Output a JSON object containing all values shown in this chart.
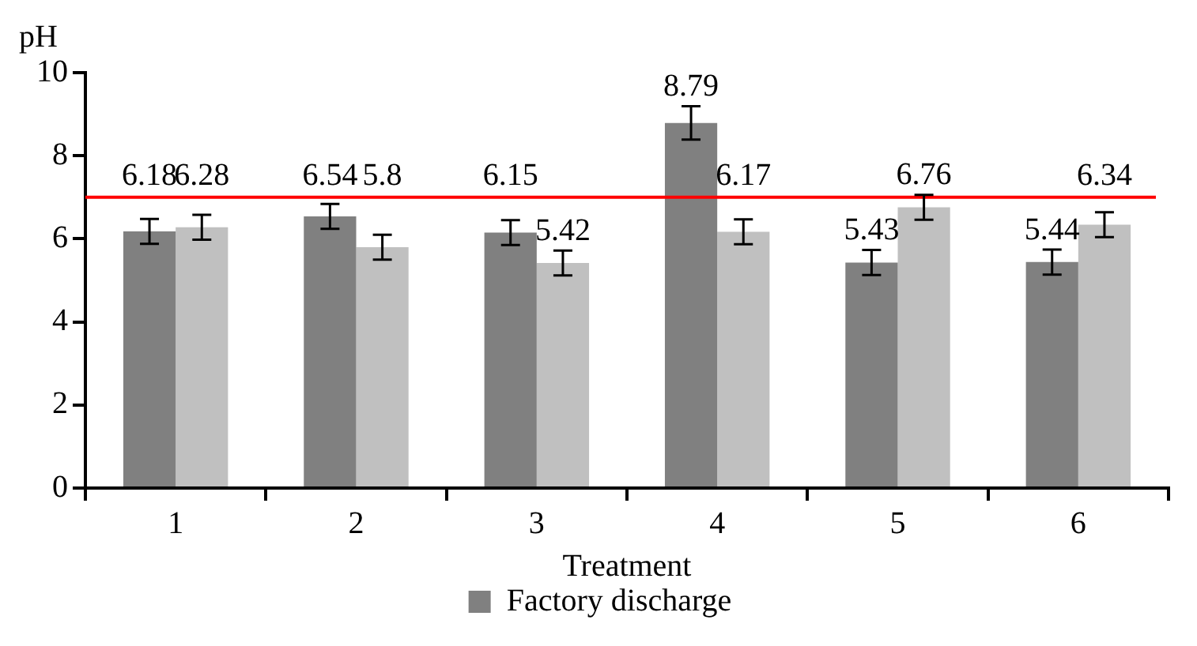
{
  "chart_data": {
    "type": "bar",
    "xlabel": "Treatment",
    "ylabel": "pH",
    "categories": [
      "1",
      "2",
      "3",
      "4",
      "5",
      "6"
    ],
    "series": [
      {
        "name": "Factory discharge",
        "color": "#808080",
        "values": [
          6.18,
          6.54,
          6.15,
          8.79,
          5.43,
          5.44
        ],
        "errors": [
          0.3,
          0.3,
          0.3,
          0.4,
          0.3,
          0.3
        ]
      },
      {
        "color": "#c0c0c0",
        "values": [
          6.28,
          5.8,
          5.42,
          6.17,
          6.76,
          6.34
        ],
        "errors": [
          0.3,
          0.3,
          0.3,
          0.3,
          0.3,
          0.3
        ]
      }
    ],
    "ylim": [
      0,
      10
    ],
    "yticks": [
      0,
      2,
      4,
      6,
      8,
      10
    ],
    "grid": false,
    "legend": "bottom",
    "data_labels": true,
    "ref_lines": [
      {
        "axis": "y",
        "value": 7,
        "color": "#ff0000"
      }
    ]
  }
}
